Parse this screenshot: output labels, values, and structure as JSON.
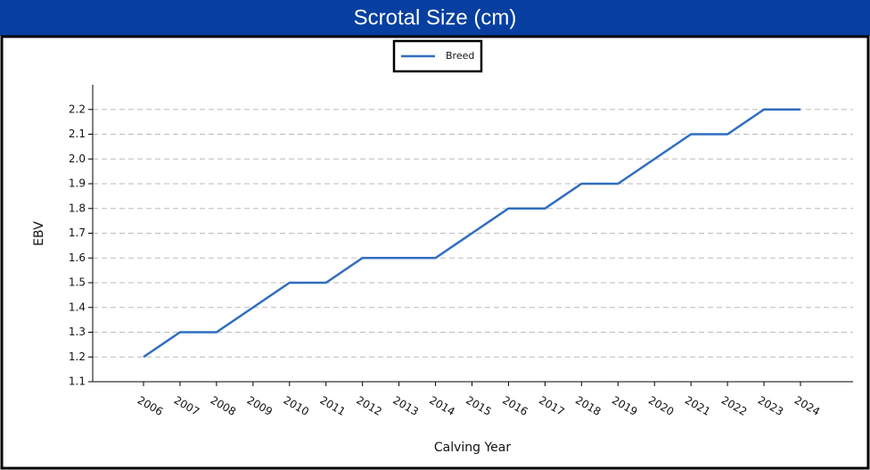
{
  "chart_data": {
    "type": "line",
    "title": "Scrotal Size (cm)",
    "x_label": "Calving Year",
    "y_label": "EBV",
    "categories": [
      "2006",
      "2007",
      "2008",
      "2009",
      "2010",
      "2011",
      "2012",
      "2013",
      "2014",
      "2015",
      "2016",
      "2017",
      "2018",
      "2019",
      "2020",
      "2021",
      "2022",
      "2023",
      "2024"
    ],
    "series": [
      {
        "name": "Breed",
        "color": "#2f6ebf",
        "values": [
          1.2,
          1.3,
          1.3,
          1.4,
          1.5,
          1.5,
          1.6,
          1.6,
          1.6,
          1.7,
          1.8,
          1.8,
          1.9,
          1.9,
          2.0,
          2.1,
          2.1,
          2.2,
          2.2
        ]
      }
    ],
    "ylim": [
      1.1,
      2.3
    ],
    "yticks": [
      1.1,
      1.2,
      1.3,
      1.4,
      1.5,
      1.6,
      1.7,
      1.8,
      1.9,
      {
        "value": 2,
        "label": "2.0"
      },
      2.1,
      2.2
    ],
    "grid": true,
    "legend": "top"
  }
}
